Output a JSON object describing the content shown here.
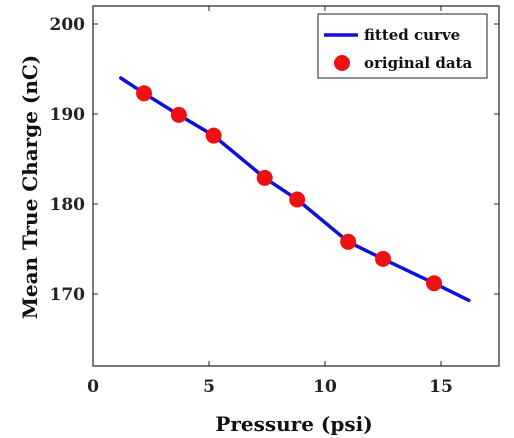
{
  "chart_data": {
    "type": "line",
    "xlabel": "Pressure (psi)",
    "ylabel": "Mean True Charge (nC)",
    "xlim": [
      0,
      17.5
    ],
    "ylim": [
      162,
      202
    ],
    "x_ticks": [
      0,
      5,
      10,
      15
    ],
    "y_ticks": [
      170,
      180,
      190,
      200
    ],
    "x_tick_labels": [
      "0",
      "5",
      "10",
      "15"
    ],
    "y_tick_labels": [
      "170",
      "180",
      "190",
      "200"
    ],
    "grid": false,
    "legend_position": "top-right",
    "series": [
      {
        "name": "fitted curve",
        "kind": "line",
        "color": "#1010d8",
        "x": [
          1.2,
          2.2,
          3.7,
          5.2,
          7.4,
          8.8,
          11.0,
          12.5,
          14.7,
          16.2
        ],
        "y": [
          194.0,
          192.3,
          189.9,
          187.6,
          182.9,
          180.5,
          175.8,
          173.9,
          171.2,
          169.3
        ]
      },
      {
        "name": "original data",
        "kind": "scatter",
        "color": "#ee1111",
        "x": [
          2.2,
          3.7,
          5.2,
          7.4,
          8.8,
          11.0,
          12.5,
          14.7
        ],
        "y": [
          192.3,
          189.9,
          187.6,
          182.9,
          180.5,
          175.8,
          173.9,
          171.2
        ]
      }
    ]
  }
}
